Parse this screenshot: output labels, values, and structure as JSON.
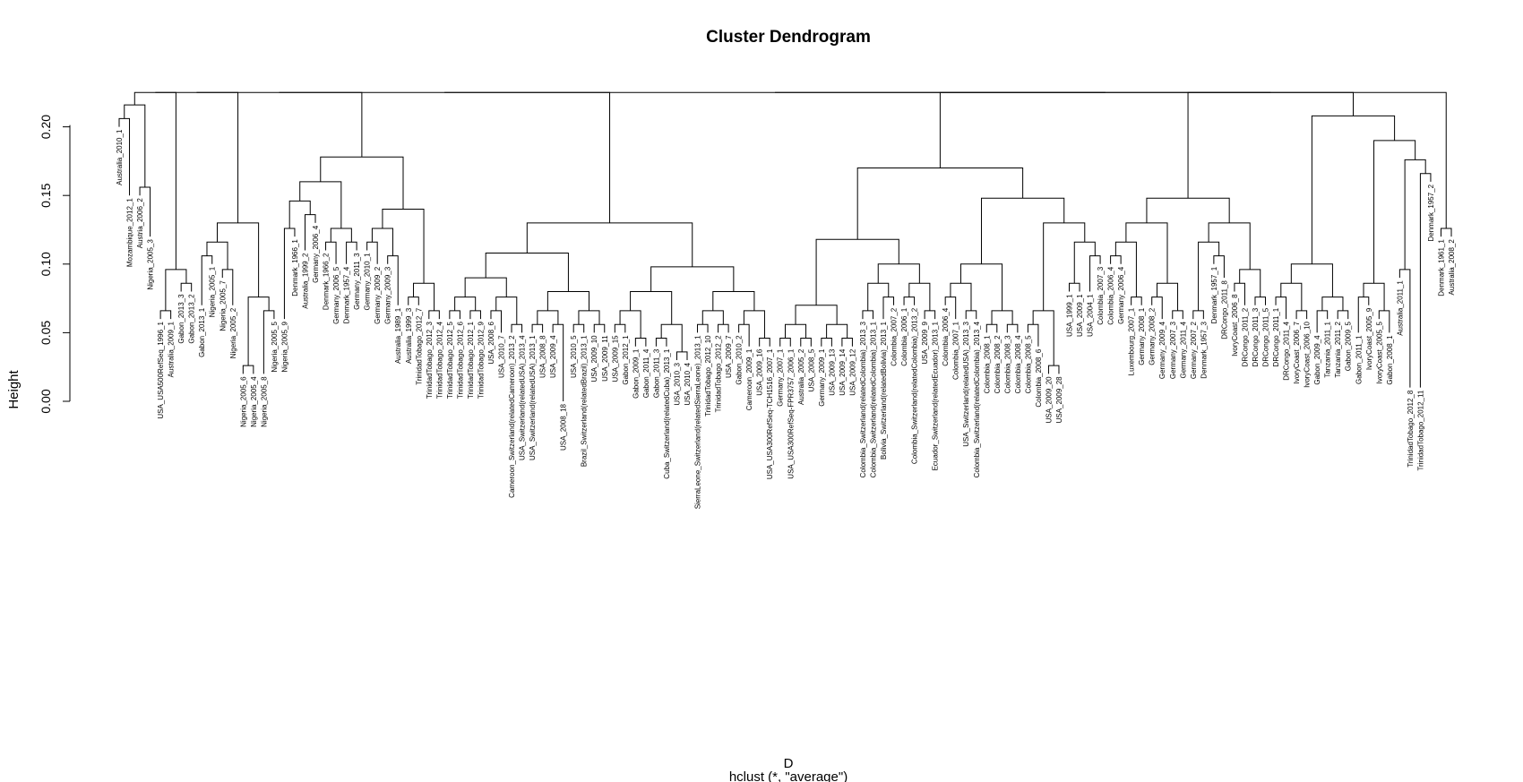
{
  "chart_data": {
    "type": "dendrogram",
    "title": "Cluster Dendrogram",
    "xlabel": "D",
    "sub": "hclust (*, \"average\")",
    "ylabel": "Height",
    "ylim": [
      0,
      0.23
    ],
    "yticks": [
      0.0,
      0.05,
      0.1,
      0.15,
      0.2
    ],
    "ytick_labels": [
      "0.00",
      "0.05",
      "0.10",
      "0.15",
      "0.20"
    ],
    "leaves": [
      {
        "label": "Australia_2010_1",
        "height": 0.2
      },
      {
        "label": "Mozambique_2012_1",
        "height": 0.15
      },
      {
        "label": "Austria_2006_2",
        "height": 0.15
      },
      {
        "label": "Nigeria_2005_3",
        "height": 0.12
      },
      {
        "label": "USA_USA500RefSeq_1996_1",
        "height": 0.06
      },
      {
        "label": "Australia_2009_1",
        "height": 0.06
      },
      {
        "label": "Gabon_2013_3",
        "height": 0.08
      },
      {
        "label": "Gabon_2013_2",
        "height": 0.08
      },
      {
        "label": "Gabon_2013_1",
        "height": 0.07
      },
      {
        "label": "Nigeria_2005_1",
        "height": 0.1
      },
      {
        "label": "Nigeria_2005_7",
        "height": 0.09
      },
      {
        "label": "Nigeria_2005_2",
        "height": 0.07
      },
      {
        "label": "Nigeria_2005_6",
        "height": 0.02
      },
      {
        "label": "Nigeria_2005_4",
        "height": 0.02
      },
      {
        "label": "Nigeria_2005_8",
        "height": 0.02
      },
      {
        "label": "Nigeria_2005_5",
        "height": 0.06
      },
      {
        "label": "Nigeria_2005_9",
        "height": 0.06
      },
      {
        "label": "Denmark_1966_1",
        "height": 0.12
      },
      {
        "label": "Australia_1999_2",
        "height": 0.11
      },
      {
        "label": "Germany_2006_4",
        "height": 0.13
      },
      {
        "label": "Denmark_1966_2",
        "height": 0.11
      },
      {
        "label": "Germany_2006_5",
        "height": 0.1
      },
      {
        "label": "Denmark_1957_4",
        "height": 0.1
      },
      {
        "label": "Germany_2011_3",
        "height": 0.11
      },
      {
        "label": "Germany_2010_1",
        "height": 0.11
      },
      {
        "label": "Germany_2009_2",
        "height": 0.1
      },
      {
        "label": "Germany_2009_3",
        "height": 0.1
      },
      {
        "label": "Australia_1989_1",
        "height": 0.07
      },
      {
        "label": "Australia_1999_3",
        "height": 0.07
      },
      {
        "label": "TrinidadTobago_2012_7",
        "height": 0.07
      },
      {
        "label": "TrinidadTobago_2012_3",
        "height": 0.06
      },
      {
        "label": "TrinidadTobago_2012_4",
        "height": 0.06
      },
      {
        "label": "TrinidadTobago_2012_5",
        "height": 0.06
      },
      {
        "label": "TrinidadTobago_2012_6",
        "height": 0.06
      },
      {
        "label": "TrinidadTobago_2012_1",
        "height": 0.06
      },
      {
        "label": "TrinidadTobago_2012_9",
        "height": 0.06
      },
      {
        "label": "USA_2008_6",
        "height": 0.06
      },
      {
        "label": "USA_2010_7",
        "height": 0.05
      },
      {
        "label": "Cameroon_Switzerland(relatedCameroon)_2013_2",
        "height": 0.05
      },
      {
        "label": "USA_Switzerland(relatedUSA)_2013_4",
        "height": 0.05
      },
      {
        "label": "USA_Switzerland(relatedUSA)_2013_1",
        "height": 0.05
      },
      {
        "label": "USA_2008_8",
        "height": 0.05
      },
      {
        "label": "USA_2009_4",
        "height": 0.05
      },
      {
        "label": "USA_2008_18",
        "height": 0.0
      },
      {
        "label": "USA_2010_5",
        "height": 0.05
      },
      {
        "label": "Brazil_Switzerland(relatedBrazil)_2013_1",
        "height": 0.05
      },
      {
        "label": "USA_2009_10",
        "height": 0.05
      },
      {
        "label": "USA_2009_11",
        "height": 0.05
      },
      {
        "label": "USA_2009_15",
        "height": 0.05
      },
      {
        "label": "Gabon_2012_1",
        "height": 0.05
      },
      {
        "label": "Gabon_2009_1",
        "height": 0.04
      },
      {
        "label": "Gabon_2011_4",
        "height": 0.04
      },
      {
        "label": "Gabon_2011_3",
        "height": 0.04
      },
      {
        "label": "Cuba_Switzerland(relatedCuba)_2013_1",
        "height": 0.04
      },
      {
        "label": "USA_2010_3",
        "height": 0.03
      },
      {
        "label": "USA_2010_4",
        "height": 0.03
      },
      {
        "label": "SierraLeone_Switzerland(relatedSierraLeone)_2013_1",
        "height": 0.05
      },
      {
        "label": "TrinidadTobago_2012_10",
        "height": 0.05
      },
      {
        "label": "TrinidadTobago_2012_2",
        "height": 0.05
      },
      {
        "label": "USA_2009_7",
        "height": 0.05
      },
      {
        "label": "Gabon_2010_2",
        "height": 0.05
      },
      {
        "label": "Cameroon_2009_1",
        "height": 0.04
      },
      {
        "label": "USA_2009_16",
        "height": 0.04
      },
      {
        "label": "USA_USA300RefSeq-TCH1516_2007_1",
        "height": 0.04
      },
      {
        "label": "Germany_2007_1",
        "height": 0.04
      },
      {
        "label": "USA_USA300RefSeq-FPR3757_2006_1",
        "height": 0.04
      },
      {
        "label": "Australia_2005_2",
        "height": 0.04
      },
      {
        "label": "USA_2008_5",
        "height": 0.04
      },
      {
        "label": "Germany_2009_1",
        "height": 0.04
      },
      {
        "label": "USA_2009_13",
        "height": 0.04
      },
      {
        "label": "USA_2009_14",
        "height": 0.04
      },
      {
        "label": "USA_2009_12",
        "height": 0.04
      },
      {
        "label": "Colombia_Switzerland(relatedColombia)_2013_3",
        "height": 0.06
      },
      {
        "label": "Colombia_Switzerland(relatedColombia)_2013_1",
        "height": 0.06
      },
      {
        "label": "Bolivia_Switzerland(relatedBolivia)_2013_1",
        "height": 0.06
      },
      {
        "label": "Colombia_2007_2",
        "height": 0.07
      },
      {
        "label": "Colombia_2006_1",
        "height": 0.07
      },
      {
        "label": "Colombia_Switzerland(relatedColombia)_2013_2",
        "height": 0.07
      },
      {
        "label": "USA_2009_9",
        "height": 0.06
      },
      {
        "label": "Ecuador_Switzerland(relatedEcuador)_2013_1",
        "height": 0.06
      },
      {
        "label": "Colombia_2006_4",
        "height": 0.07
      },
      {
        "label": "Colombia_2007_1",
        "height": 0.06
      },
      {
        "label": "USA_Switzerland(relatedUSA)_2013_3",
        "height": 0.06
      },
      {
        "label": "Colombia_Switzerland(relatedColombia)_2013_4",
        "height": 0.06
      },
      {
        "label": "Colombia_2008_1",
        "height": 0.05
      },
      {
        "label": "Colombia_2008_2",
        "height": 0.05
      },
      {
        "label": "Colombia_2008_3",
        "height": 0.05
      },
      {
        "label": "Colombia_2008_4",
        "height": 0.05
      },
      {
        "label": "Colombia_2008_5",
        "height": 0.05
      },
      {
        "label": "Colombia_2008_6",
        "height": 0.04
      },
      {
        "label": "USA_2009_20",
        "height": 0.02
      },
      {
        "label": "USA_2009_28",
        "height": 0.02
      },
      {
        "label": "USA_1999_1",
        "height": 0.08
      },
      {
        "label": "USA_2009_1",
        "height": 0.08
      },
      {
        "label": "USA_2004_1",
        "height": 0.08
      },
      {
        "label": "Colombia_2007_3",
        "height": 0.1
      },
      {
        "label": "Colombia_2006_4",
        "height": 0.1
      },
      {
        "label": "Germany_2006_4",
        "height": 0.1
      },
      {
        "label": "Luxembourg_2007_1",
        "height": 0.07
      },
      {
        "label": "Germany_2008_1",
        "height": 0.07
      },
      {
        "label": "Germany_2008_2",
        "height": 0.07
      },
      {
        "label": "Germany_2009_4",
        "height": 0.06
      },
      {
        "label": "Germany_2007_3",
        "height": 0.06
      },
      {
        "label": "Germany_2011_4",
        "height": 0.06
      },
      {
        "label": "Germany_2007_2",
        "height": 0.06
      },
      {
        "label": "Denmark_1957_3",
        "height": 0.06
      },
      {
        "label": "Denmark_1957_1",
        "height": 0.1
      },
      {
        "label": "DRCongo_2011_8",
        "height": 0.09
      },
      {
        "label": "IvoryCoast_2006_8",
        "height": 0.08
      },
      {
        "label": "DRCongo_2011_2",
        "height": 0.07
      },
      {
        "label": "DRCongo_2011_3",
        "height": 0.07
      },
      {
        "label": "DRCongo_2011_5",
        "height": 0.07
      },
      {
        "label": "DRCongo_2011_1",
        "height": 0.07
      },
      {
        "label": "DRCongo_2011_4",
        "height": 0.06
      },
      {
        "label": "IvoryCoast_2006_7",
        "height": 0.06
      },
      {
        "label": "IvoryCoast_2006_10",
        "height": 0.06
      },
      {
        "label": "Gabon_2009_4",
        "height": 0.05
      },
      {
        "label": "Tanzania_2011_1",
        "height": 0.06
      },
      {
        "label": "Tanzania_2011_2",
        "height": 0.06
      },
      {
        "label": "Gabon_2009_5",
        "height": 0.06
      },
      {
        "label": "Gabon_2011_1",
        "height": 0.05
      },
      {
        "label": "IvoryCoast_2005_9",
        "height": 0.07
      },
      {
        "label": "IvoryCoast_2005_5",
        "height": 0.06
      },
      {
        "label": "Gabon_2008_1",
        "height": 0.05
      },
      {
        "label": "Australia_2011_1",
        "height": 0.09
      },
      {
        "label": "TrinidadTobago_2012_8",
        "height": 0.01
      },
      {
        "label": "TrinidadTobago_2012_11",
        "height": 0.01
      },
      {
        "label": "Denmark_1957_2",
        "height": 0.16
      },
      {
        "label": "Denmark_1961_1",
        "height": 0.12
      },
      {
        "label": "Australia_2008_2",
        "height": 0.12
      }
    ]
  }
}
